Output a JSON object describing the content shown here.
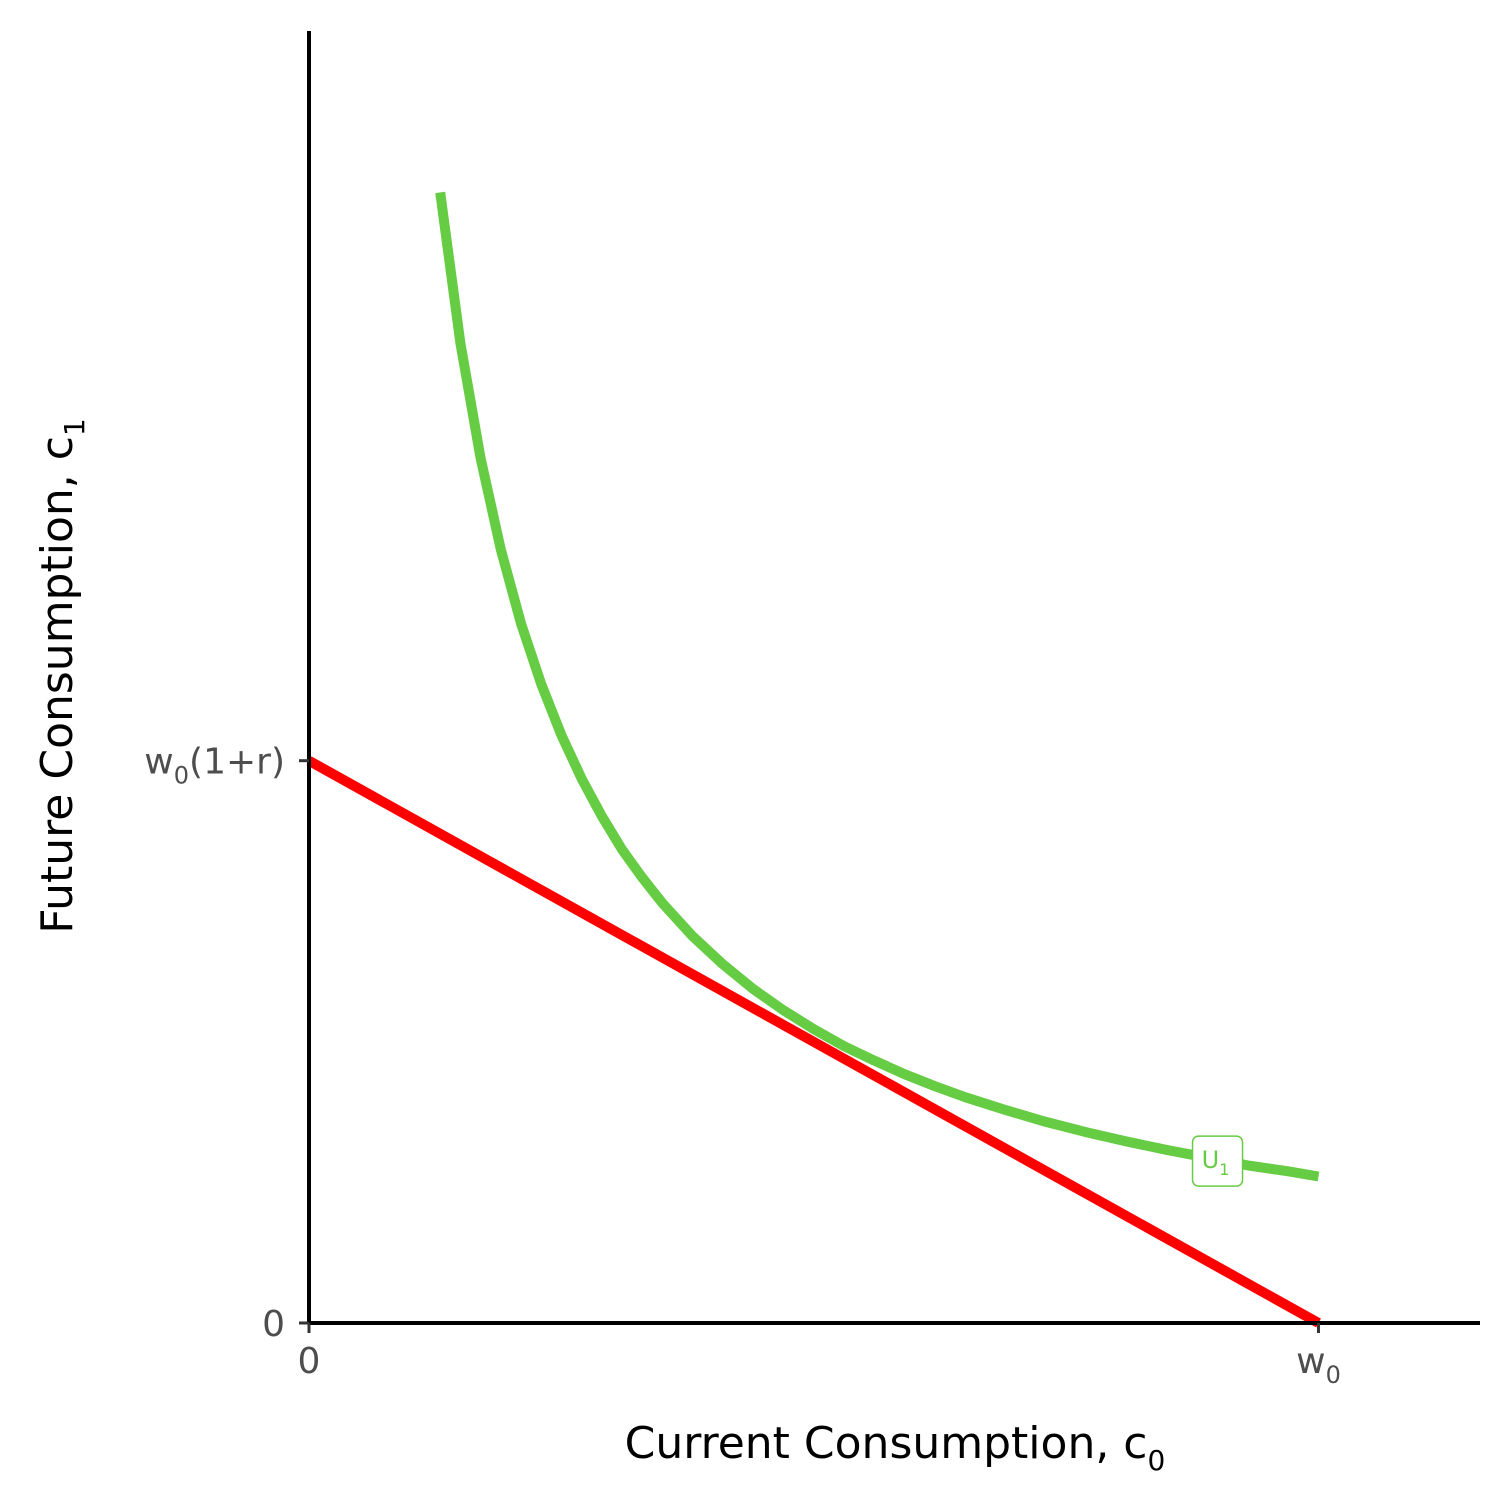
{
  "chart_data": {
    "type": "line",
    "title": "",
    "xlabel": "Current Consumption, c",
    "xlabel_sub": "0",
    "ylabel": "Future Consumption, c",
    "ylabel_sub": "1",
    "xlim": [
      0,
      1.16
    ],
    "ylim": [
      0,
      1.52
    ],
    "grid": false,
    "x_ticks": [
      {
        "value": 0,
        "label": "0",
        "sub": ""
      },
      {
        "value": 1,
        "label": "w",
        "sub": "0"
      }
    ],
    "y_ticks": [
      {
        "value": 0,
        "label": "0",
        "sub": "",
        "suffix": ""
      },
      {
        "value": 0.66,
        "label": "w",
        "sub": "0",
        "suffix": "(1+r)"
      }
    ],
    "series": [
      {
        "key": "indifference-curve",
        "type": "curve",
        "color": "#66cc44",
        "x": [
          0.13,
          0.15,
          0.17,
          0.19,
          0.21,
          0.23,
          0.25,
          0.27,
          0.29,
          0.31,
          0.33,
          0.35,
          0.38,
          0.41,
          0.44,
          0.47,
          0.5,
          0.53,
          0.56,
          0.59,
          0.62,
          0.65,
          0.69,
          0.73,
          0.77,
          0.81,
          0.85,
          0.89,
          0.93,
          0.97,
          1.0
        ],
        "y": [
          1.327,
          1.15,
          1.015,
          0.908,
          0.821,
          0.75,
          0.69,
          0.639,
          0.595,
          0.556,
          0.523,
          0.493,
          0.454,
          0.421,
          0.392,
          0.367,
          0.345,
          0.325,
          0.308,
          0.292,
          0.278,
          0.265,
          0.25,
          0.236,
          0.224,
          0.213,
          0.203,
          0.194,
          0.185,
          0.178,
          0.172
        ]
      },
      {
        "key": "budget-line",
        "type": "line",
        "color": "#ff0000",
        "x": [
          0,
          1
        ],
        "y": [
          0.66,
          0
        ]
      }
    ],
    "annotations": [
      {
        "text": "U",
        "sub": "1",
        "x": 0.9,
        "y": 0.19,
        "color": "#66cc44"
      }
    ]
  }
}
